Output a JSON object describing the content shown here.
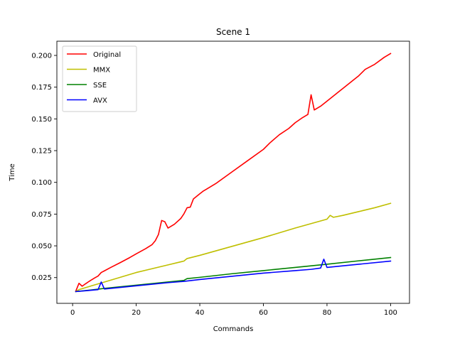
{
  "chart_data": {
    "type": "line",
    "title": "Scene 1",
    "xlabel": "Commands",
    "ylabel": "Time",
    "xlim": [
      -4.95,
      105.95
    ],
    "ylim": [
      0.0047,
      0.2112
    ],
    "xticks": [
      0,
      20,
      40,
      60,
      80,
      100
    ],
    "yticks": [
      0.025,
      0.05,
      0.075,
      0.1,
      0.125,
      0.15,
      0.175,
      0.2
    ],
    "ytick_labels": [
      "0.025",
      "0.050",
      "0.075",
      "0.100",
      "0.125",
      "0.150",
      "0.175",
      "0.200"
    ],
    "grid": false,
    "legend_position": "top-left",
    "series": [
      {
        "name": "Original",
        "color": "#ff0000",
        "x": [
          1,
          2,
          3,
          4,
          5,
          6,
          7,
          8,
          9,
          10,
          12,
          15,
          18,
          20,
          23,
          25,
          26,
          27,
          28,
          29,
          30,
          32,
          34,
          35,
          36,
          37,
          38,
          40,
          41,
          42,
          45,
          50,
          55,
          60,
          62,
          65,
          68,
          70,
          72,
          74,
          75,
          76,
          78,
          80,
          85,
          88,
          90,
          92,
          95,
          98,
          100
        ],
        "y": [
          0.0143,
          0.0205,
          0.0182,
          0.02,
          0.0217,
          0.0233,
          0.0248,
          0.0262,
          0.029,
          0.0303,
          0.033,
          0.0368,
          0.0408,
          0.0437,
          0.0478,
          0.051,
          0.054,
          0.059,
          0.07,
          0.069,
          0.064,
          0.067,
          0.0715,
          0.0752,
          0.08,
          0.0805,
          0.087,
          0.091,
          0.093,
          0.0945,
          0.099,
          0.108,
          0.117,
          0.126,
          0.131,
          0.1375,
          0.1425,
          0.147,
          0.1505,
          0.1535,
          0.169,
          0.157,
          0.16,
          0.164,
          0.174,
          0.18,
          0.184,
          0.189,
          0.193,
          0.1985,
          0.2015
        ]
      },
      {
        "name": "MMX",
        "color": "#bfbf00",
        "x": [
          1,
          2,
          5,
          10,
          20,
          30,
          35,
          36,
          40,
          50,
          60,
          70,
          80,
          81,
          82,
          85,
          90,
          95,
          100
        ],
        "y": [
          0.014,
          0.0155,
          0.0178,
          0.0215,
          0.029,
          0.035,
          0.038,
          0.04,
          0.0425,
          0.0495,
          0.0565,
          0.064,
          0.071,
          0.074,
          0.0725,
          0.074,
          0.077,
          0.08,
          0.0835
        ]
      },
      {
        "name": "SSE",
        "color": "#008000",
        "x": [
          1,
          5,
          10,
          20,
          30,
          35,
          36,
          40,
          50,
          60,
          70,
          80,
          90,
          100
        ],
        "y": [
          0.014,
          0.015,
          0.0165,
          0.019,
          0.0215,
          0.0228,
          0.0242,
          0.0252,
          0.028,
          0.0305,
          0.033,
          0.0355,
          0.0382,
          0.0408
        ]
      },
      {
        "name": "AVX",
        "color": "#0000ff",
        "x": [
          1,
          5,
          8,
          9,
          10,
          20,
          30,
          35,
          40,
          50,
          60,
          70,
          75,
          78,
          79,
          80,
          90,
          100
        ],
        "y": [
          0.014,
          0.0148,
          0.0155,
          0.0215,
          0.016,
          0.0185,
          0.021,
          0.022,
          0.0235,
          0.026,
          0.0285,
          0.0305,
          0.0315,
          0.0325,
          0.0395,
          0.033,
          0.0355,
          0.038
        ]
      }
    ]
  }
}
